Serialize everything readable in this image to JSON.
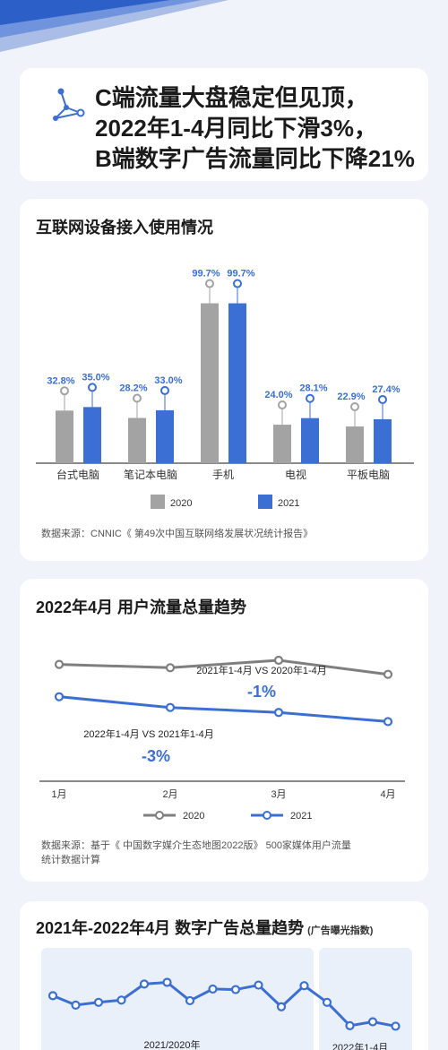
{
  "colors": {
    "accent": "#3b6fd4",
    "gray": "#a3a3a3",
    "dark_gray": "#7f7f7f",
    "axis": "#444444",
    "bg": "#f0f3f9"
  },
  "hero": {
    "icon": "constellation-icon",
    "lines": [
      "C端流量大盘稳定但见顶，",
      "2022年1-4月同比下滑3%，",
      "B端数字广告流量同比下降21%"
    ]
  },
  "chart1": {
    "title": "互联网设备接入使用情况",
    "source": "数据来源：CNNIC《 第49次中国互联网络发展状况统计报告》"
  },
  "chart2": {
    "title": "2022年4月 用户流量总量趋势",
    "source_lines": [
      "数据来源：基于《 中国数字媒介生态地图2022版》 500家媒体用户流量",
      "统计数据计算"
    ]
  },
  "chart3": {
    "title": "2021年-2022年4月 数字广告总量趋势",
    "title_small": "(广告曝光指数)"
  },
  "chart_data": [
    {
      "type": "bar",
      "categories": [
        "台式电脑",
        "笔记本电脑",
        "手机",
        "电视",
        "平板电脑"
      ],
      "series": [
        {
          "name": "2020",
          "values": [
            32.8,
            28.2,
            99.7,
            24.0,
            22.9
          ],
          "labels": [
            "32.8%",
            "28.2%",
            "99.7%",
            "24.0%",
            "22.9%"
          ]
        },
        {
          "name": "2021",
          "values": [
            35.0,
            33.0,
            99.7,
            28.1,
            27.4
          ],
          "labels": [
            "35.0%",
            "33.0%",
            "99.7%",
            "28.1%",
            "27.4%"
          ]
        }
      ],
      "ylim": [
        0,
        100
      ],
      "legend": "bottom"
    },
    {
      "type": "line",
      "x": [
        "1月",
        "2月",
        "3月",
        "4月"
      ],
      "series": [
        {
          "name": "2020",
          "values": [
            0.78,
            0.74,
            0.83,
            0.66
          ]
        },
        {
          "name": "2021",
          "values": [
            0.39,
            0.26,
            0.2,
            0.09
          ]
        }
      ],
      "ylim": [
        -0.5,
        1.1
      ],
      "annotations": [
        {
          "text": "2021年1-4月 VS 2020年1-4月",
          "value": "-1%"
        },
        {
          "text": "2022年1-4月 VS 2021年1-4月",
          "value": "-3%"
        }
      ],
      "legend": "bottom"
    },
    {
      "type": "line",
      "series": [
        {
          "name": "2021/2020年",
          "values": [
            0.72,
            0.55,
            0.6,
            0.64,
            0.93,
            0.96,
            0.63,
            0.84,
            0.83,
            0.91,
            0.52,
            0.9
          ]
        },
        {
          "name": "2022年1-4月",
          "values": [
            0.6,
            0.18,
            0.25,
            0.17
          ]
        }
      ],
      "ylim": [
        0,
        1
      ]
    }
  ]
}
